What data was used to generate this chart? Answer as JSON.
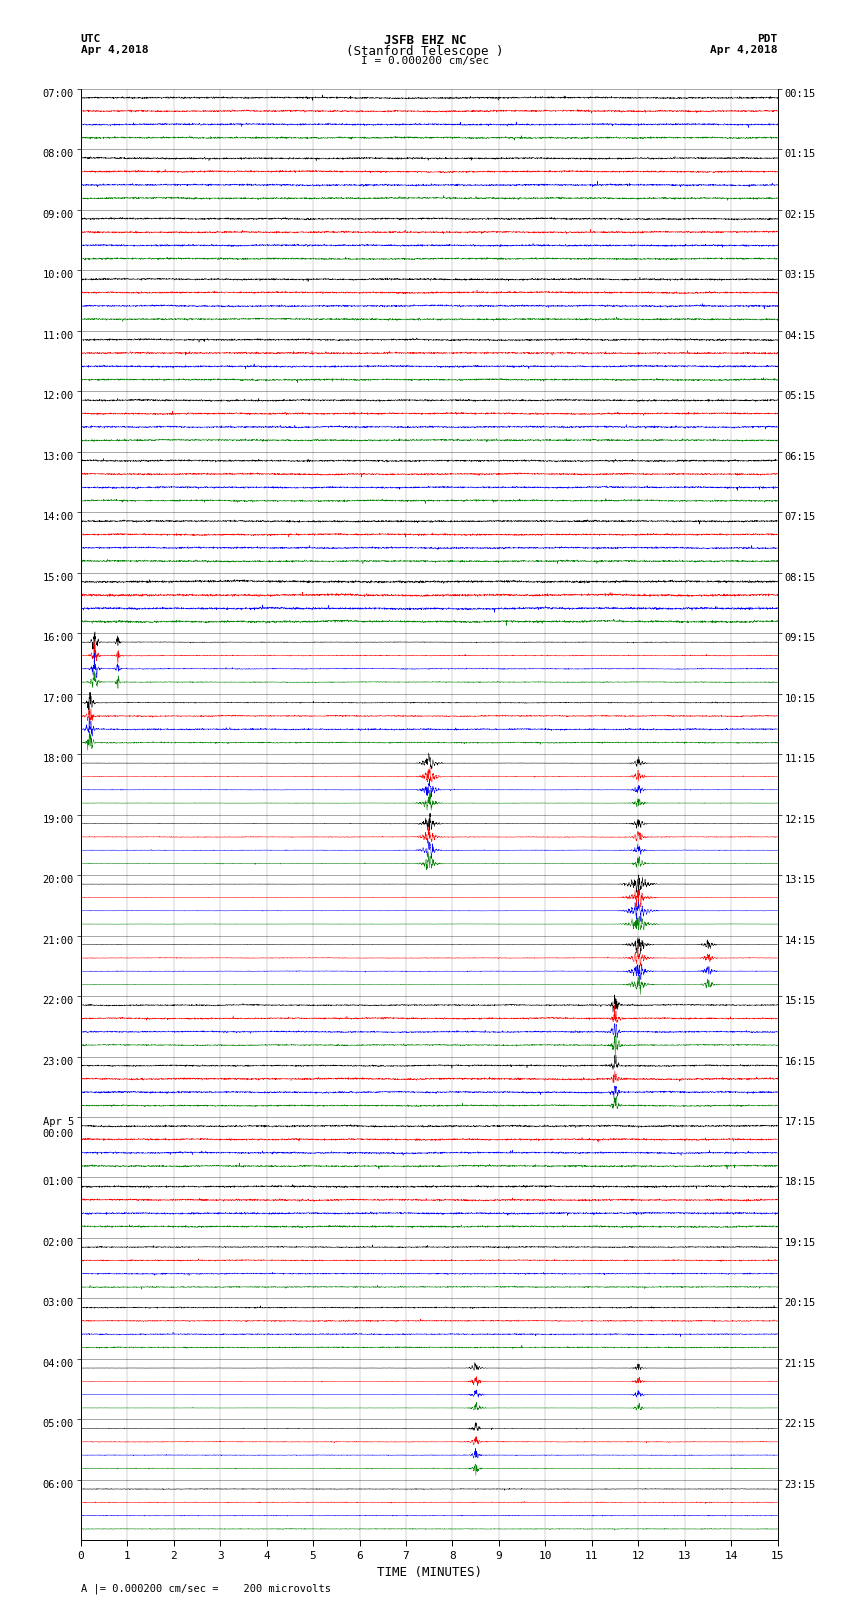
{
  "title_line1": "JSFB EHZ NC",
  "title_line2": "(Stanford Telescope )",
  "scale_label": "I = 0.000200 cm/sec",
  "utc_label": "UTC",
  "utc_date": "Apr 4,2018",
  "pdt_label": "PDT",
  "pdt_date": "Apr 4,2018",
  "bottom_label": "A |= 0.000200 cm/sec =    200 microvolts",
  "xlabel": "TIME (MINUTES)",
  "left_times": [
    "07:00",
    "08:00",
    "09:00",
    "10:00",
    "11:00",
    "12:00",
    "13:00",
    "14:00",
    "15:00",
    "16:00",
    "17:00",
    "18:00",
    "19:00",
    "20:00",
    "21:00",
    "22:00",
    "23:00",
    "Apr 5\n00:00",
    "01:00",
    "02:00",
    "03:00",
    "04:00",
    "05:00",
    "06:00"
  ],
  "right_times": [
    "00:15",
    "01:15",
    "02:15",
    "03:15",
    "04:15",
    "05:15",
    "06:15",
    "07:15",
    "08:15",
    "09:15",
    "10:15",
    "11:15",
    "12:15",
    "13:15",
    "14:15",
    "15:15",
    "16:15",
    "17:15",
    "18:15",
    "19:15",
    "20:15",
    "21:15",
    "22:15",
    "23:15"
  ],
  "n_rows": 24,
  "traces_per_row": 4,
  "colors": [
    "black",
    "red",
    "blue",
    "green"
  ],
  "bg_color": "white",
  "fig_width": 8.5,
  "fig_height": 16.13,
  "minutes": 15,
  "xticks": [
    0,
    1,
    2,
    3,
    4,
    5,
    6,
    7,
    8,
    9,
    10,
    11,
    12,
    13,
    14,
    15
  ],
  "samples_per_minute": 200
}
